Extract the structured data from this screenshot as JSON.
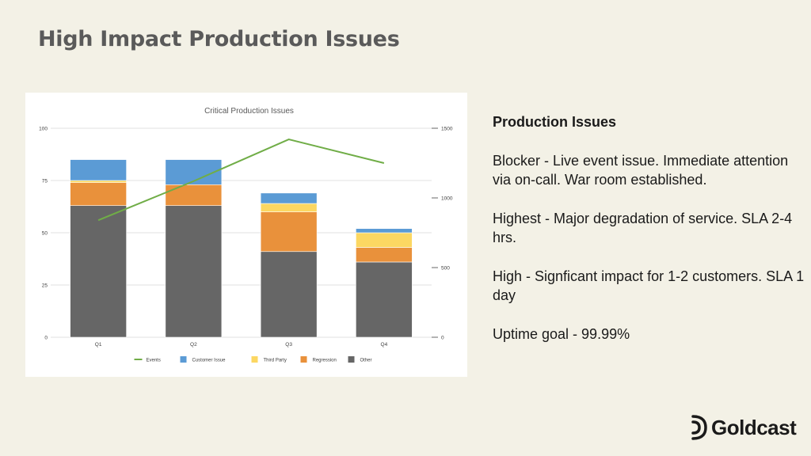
{
  "slide": {
    "title": "High Impact Production Issues"
  },
  "info": {
    "heading": "Production Issues",
    "paragraphs": [
      "Blocker - Live event issue. Immediate attention via on-call. War room established.",
      "Highest - Major degradation of service. SLA 2-4 hrs.",
      "High - Signficant impact for 1-2 customers. SLA 1 day",
      "Uptime goal - 99.99%"
    ]
  },
  "logo": {
    "text": "Goldcast",
    "icon": "goldcast-logo-icon"
  },
  "chart_data": {
    "type": "bar",
    "stacked": true,
    "title": "Critical Production Issues",
    "categories": [
      "Q1",
      "Q2",
      "Q3",
      "Q4"
    ],
    "ylim": [
      0,
      100
    ],
    "yticks": [
      0,
      25,
      50,
      75,
      100
    ],
    "y2lim": [
      0,
      1500
    ],
    "y2ticks": [
      0,
      500,
      1000,
      1500
    ],
    "grid": true,
    "legend_position": "bottom",
    "series": [
      {
        "name": "Other",
        "color": "#666666",
        "values": [
          63,
          63,
          41,
          36
        ]
      },
      {
        "name": "Regression",
        "color": "#e9913b",
        "values": [
          11,
          10,
          19,
          7
        ]
      },
      {
        "name": "Third Party",
        "color": "#fcd762",
        "values": [
          1,
          0,
          4,
          7
        ]
      },
      {
        "name": "Customer Issue",
        "color": "#5b9bd5",
        "values": [
          10,
          12,
          5,
          2
        ]
      }
    ],
    "line_series": {
      "name": "Events",
      "color": "#70ad47",
      "axis": "secondary",
      "values": [
        840,
        1120,
        1420,
        1250
      ]
    },
    "legend_order": [
      "Events",
      "Customer Issue",
      "Third Party",
      "Regression",
      "Other"
    ]
  }
}
